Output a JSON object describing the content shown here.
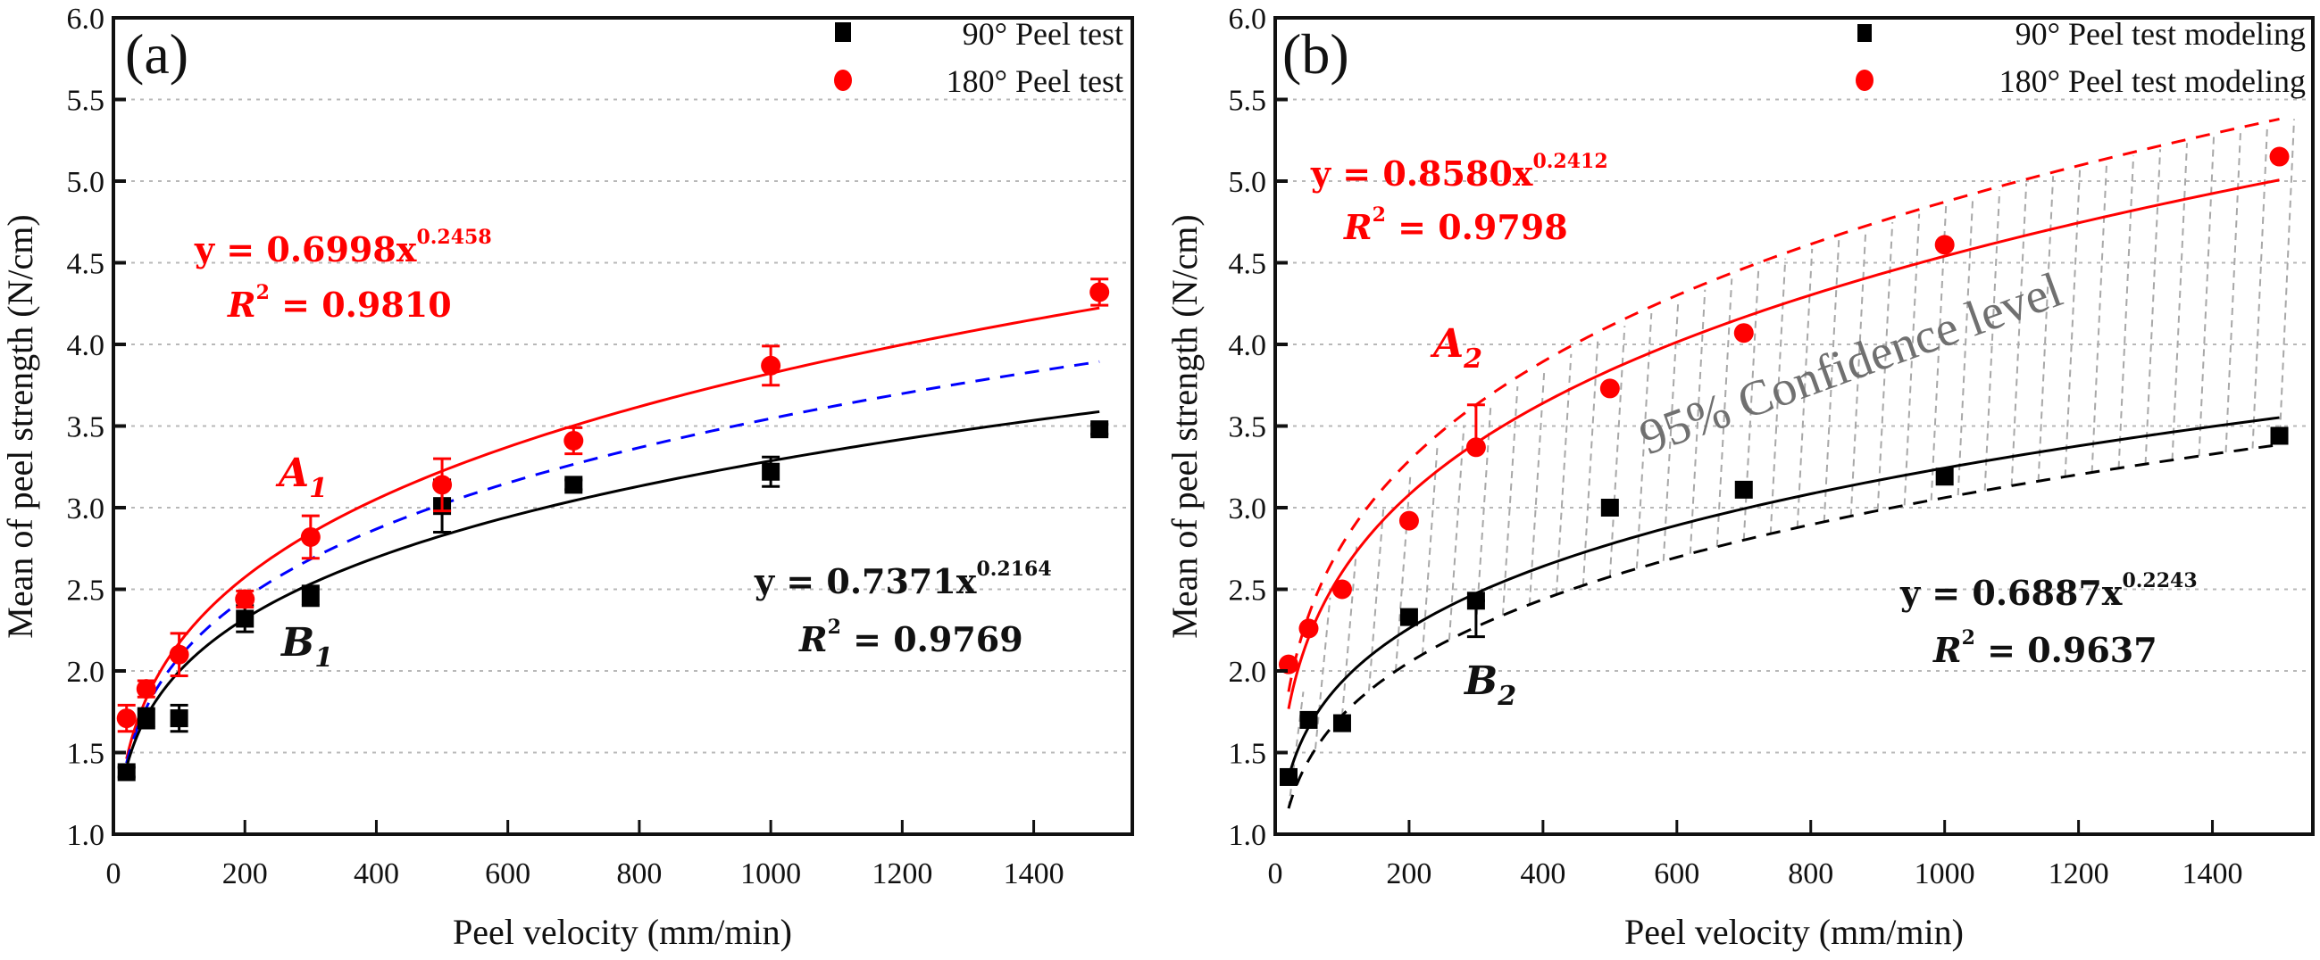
{
  "chart_data": [
    {
      "panel_label": "(a)",
      "type": "scatter",
      "xlabel": "Peel velocity (mm/min)",
      "ylabel": "Mean of peel strength (N/cm)",
      "xlim": [
        0,
        1550
      ],
      "ylim": [
        1.0,
        6.0
      ],
      "xticks": [
        0,
        200,
        400,
        600,
        800,
        1000,
        1200,
        1400
      ],
      "yticks": [
        1.0,
        1.5,
        2.0,
        2.5,
        3.0,
        3.5,
        4.0,
        4.5,
        5.0,
        5.5,
        6.0
      ],
      "grid": "horizontal-dotted",
      "legend_position": "top-right",
      "series": [
        {
          "name": "90° Peel test",
          "marker": "square",
          "color": "#000000",
          "x": [
            20,
            50,
            100,
            200,
            300,
            500,
            700,
            1000,
            1500
          ],
          "y": [
            1.38,
            1.71,
            1.71,
            2.32,
            2.46,
            3.01,
            3.14,
            3.22,
            3.48
          ],
          "err": [
            0.03,
            0.06,
            0.08,
            0.08,
            0.06,
            0.16,
            0.03,
            0.09,
            0.03
          ]
        },
        {
          "name": "180° Peel test",
          "marker": "circle",
          "color": "#ff0000",
          "x": [
            20,
            50,
            100,
            200,
            300,
            500,
            700,
            1000,
            1500
          ],
          "y": [
            1.71,
            1.89,
            2.1,
            2.44,
            2.82,
            3.14,
            3.41,
            3.87,
            4.32
          ],
          "err": [
            0.08,
            0.05,
            0.13,
            0.05,
            0.13,
            0.16,
            0.08,
            0.12,
            0.08
          ]
        }
      ],
      "fits": [
        {
          "name": "180° fit",
          "a": 0.6998,
          "b": 0.2458,
          "color": "#ff0000",
          "style": "solid"
        },
        {
          "name": "mean fit",
          "a": 0.7185,
          "b": 0.2311,
          "color": "#0000ff",
          "style": "dashed"
        },
        {
          "name": "90° fit",
          "a": 0.7371,
          "b": 0.2164,
          "color": "#000000",
          "style": "solid"
        }
      ],
      "equations": [
        {
          "color": "#ff0000",
          "line1_prefix": "y = 0.6998x",
          "line1_exp": "0.2458",
          "line2_prefix": "R",
          "line2_exp": "2",
          "line2_suffix": " = 0.9810"
        },
        {
          "color": "#000000",
          "line1_prefix": "y = 0.7371x",
          "line1_exp": "0.2164",
          "line2_prefix": "R",
          "line2_exp": "2",
          "line2_suffix": " = 0.9769"
        }
      ],
      "annotations": [
        {
          "text": "A",
          "sub": "1",
          "color": "#ff0000"
        },
        {
          "text": "B",
          "sub": "1",
          "color": "#000000"
        }
      ]
    },
    {
      "panel_label": "(b)",
      "type": "scatter",
      "xlabel": "Peel velocity (mm/min)",
      "ylabel": "Mean of peel strength (N/cm)",
      "xlim": [
        0,
        1550
      ],
      "ylim": [
        1.0,
        6.0
      ],
      "xticks": [
        0,
        200,
        400,
        600,
        800,
        1000,
        1200,
        1400
      ],
      "yticks": [
        1.0,
        1.5,
        2.0,
        2.5,
        3.0,
        3.5,
        4.0,
        4.5,
        5.0,
        5.5,
        6.0
      ],
      "grid": "horizontal-dotted",
      "legend_position": "top-right",
      "series": [
        {
          "name": "90° Peel test modeling",
          "marker": "square",
          "color": "#000000",
          "x": [
            20,
            50,
            100,
            200,
            300,
            500,
            700,
            1000,
            1500
          ],
          "y": [
            1.35,
            1.7,
            1.68,
            2.33,
            2.43,
            3.0,
            3.11,
            3.19,
            3.44
          ],
          "err_point": {
            "x": 300,
            "low": 2.21,
            "high": 2.43
          }
        },
        {
          "name": "180° Peel test modeling",
          "marker": "circle",
          "color": "#ff0000",
          "x": [
            20,
            50,
            100,
            200,
            300,
            500,
            700,
            1000,
            1500
          ],
          "y": [
            2.04,
            2.26,
            2.5,
            2.92,
            3.37,
            3.73,
            4.07,
            4.61,
            5.15
          ],
          "err_point": {
            "x": 300,
            "low": 3.37,
            "high": 3.63
          }
        }
      ],
      "fits": [
        {
          "name": "180° fit",
          "a": 0.858,
          "b": 0.2412,
          "color": "#ff0000",
          "style": "solid"
        },
        {
          "name": "180° upper 95% bound",
          "a": 0.9,
          "b": 0.2445,
          "color": "#ff0000",
          "style": "dashed"
        },
        {
          "name": "90° fit",
          "a": 0.6887,
          "b": 0.2243,
          "color": "#000000",
          "style": "solid"
        },
        {
          "name": "90° lower 95% bound",
          "a": 0.55,
          "b": 0.2485,
          "color": "#000000",
          "style": "dashed"
        }
      ],
      "confidence_band_label": "95% Confidence level",
      "equations": [
        {
          "color": "#ff0000",
          "line1_prefix": "y = 0.8580x",
          "line1_exp": "0.2412",
          "line2_prefix": "R",
          "line2_exp": "2",
          "line2_suffix": " = 0.9798"
        },
        {
          "color": "#000000",
          "line1_prefix": "y = 0.6887x",
          "line1_exp": "0.2243",
          "line2_prefix": "R",
          "line2_exp": "2",
          "line2_suffix": " = 0.9637"
        }
      ],
      "annotations": [
        {
          "text": "A",
          "sub": "2",
          "color": "#ff0000"
        },
        {
          "text": "B",
          "sub": "2",
          "color": "#000000"
        }
      ]
    }
  ]
}
